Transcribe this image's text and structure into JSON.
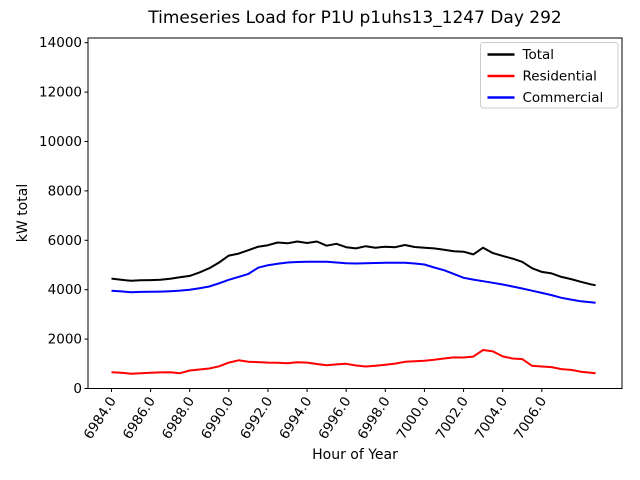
{
  "chart_data": {
    "type": "line",
    "title": "Timeseries Load for P1U p1uhs13_1247  Day 292",
    "xlabel": "Hour of Year",
    "ylabel": "kW total",
    "grid": false,
    "legend_position": "upper right",
    "xlim": [
      6982.8,
      7010.1
    ],
    "ylim": [
      0,
      14190
    ],
    "x_ticks": [
      6984,
      6986,
      6988,
      6990,
      6992,
      6994,
      6996,
      6998,
      7000,
      7002,
      7004,
      7006
    ],
    "x_tick_labels": [
      "6984.0",
      "6986.0",
      "6988.0",
      "6990.0",
      "6992.0",
      "6994.0",
      "6996.0",
      "6998.0",
      "7000.0",
      "7002.0",
      "7004.0",
      "7006.0"
    ],
    "y_ticks": [
      0,
      2000,
      4000,
      6000,
      8000,
      10000,
      12000,
      14000
    ],
    "y_tick_labels": [
      "0",
      "2000",
      "4000",
      "6000",
      "8000",
      "10000",
      "12000",
      "14000"
    ],
    "colors": {
      "total": "#000000",
      "residential": "#ff0000",
      "commercial": "#0000ff"
    },
    "x": [
      6984,
      6984.5,
      6985,
      6985.5,
      6986,
      6986.5,
      6987,
      6987.5,
      6988,
      6988.5,
      6989,
      6989.5,
      6990,
      6990.5,
      6991,
      6991.5,
      6992,
      6992.5,
      6993,
      6993.5,
      6994,
      6994.5,
      6995,
      6995.5,
      6996,
      6996.5,
      6997,
      6997.5,
      6998,
      6998.5,
      6999,
      6999.5,
      7000,
      7000.5,
      7001,
      7001.5,
      7002,
      7002.5,
      7003,
      7003.5,
      7004,
      7004.5,
      7005,
      7005.5,
      7006,
      7006.5,
      7007,
      7007.5,
      7008,
      7008.5,
      7008.75
    ],
    "series": [
      {
        "name": "Total",
        "color": "#000000",
        "values": [
          4450,
          4400,
          4360,
          4380,
          4390,
          4400,
          4440,
          4500,
          4560,
          4700,
          4870,
          5100,
          5380,
          5460,
          5600,
          5740,
          5800,
          5910,
          5880,
          5950,
          5890,
          5950,
          5780,
          5860,
          5720,
          5670,
          5760,
          5700,
          5740,
          5720,
          5810,
          5730,
          5700,
          5670,
          5620,
          5560,
          5540,
          5430,
          5700,
          5480,
          5370,
          5260,
          5130,
          4870,
          4720,
          4660,
          4520,
          4430,
          4320,
          4220,
          4180
        ]
      },
      {
        "name": "Residential",
        "color": "#ff0000",
        "values": [
          660,
          640,
          600,
          615,
          640,
          650,
          660,
          620,
          730,
          770,
          810,
          900,
          1050,
          1140,
          1080,
          1070,
          1050,
          1040,
          1025,
          1060,
          1050,
          990,
          945,
          975,
          1000,
          930,
          890,
          920,
          960,
          1010,
          1080,
          1100,
          1120,
          1160,
          1215,
          1260,
          1255,
          1290,
          1560,
          1500,
          1300,
          1215,
          1190,
          920,
          890,
          865,
          785,
          755,
          680,
          640,
          620
        ]
      },
      {
        "name": "Commercial",
        "color": "#0000ff",
        "values": [
          3960,
          3930,
          3900,
          3910,
          3915,
          3925,
          3940,
          3965,
          4000,
          4060,
          4130,
          4260,
          4400,
          4520,
          4640,
          4890,
          4990,
          5050,
          5100,
          5120,
          5130,
          5130,
          5130,
          5100,
          5070,
          5060,
          5070,
          5080,
          5090,
          5090,
          5090,
          5060,
          5020,
          4900,
          4790,
          4640,
          4480,
          4410,
          4345,
          4280,
          4210,
          4130,
          4050,
          3960,
          3870,
          3780,
          3670,
          3600,
          3530,
          3490,
          3470
        ]
      }
    ]
  }
}
